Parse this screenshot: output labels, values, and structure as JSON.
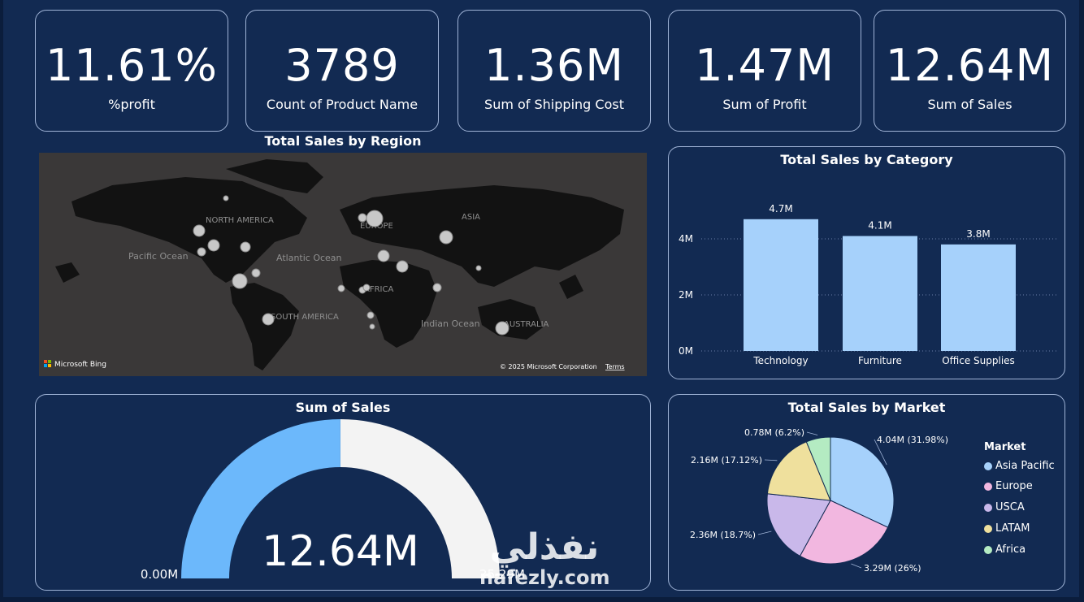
{
  "kpis": [
    {
      "value": "11.61%",
      "label": "%profit"
    },
    {
      "value": "3789",
      "label": "Count of Product Name"
    },
    {
      "value": "1.36M",
      "label": "Sum of Shipping  Cost"
    },
    {
      "value": "1.47M",
      "label": "Sum of Profit"
    },
    {
      "value": "12.64M",
      "label": "Sum of Sales"
    }
  ],
  "map": {
    "title": "Total Sales by Region",
    "labels": {
      "north_america": "NORTH AMERICA",
      "europe": "EUROPE",
      "asia": "ASIA",
      "africa": "AFRICA",
      "south_america": "SOUTH AMERICA",
      "australia": "AUSTRALIA",
      "pacific": "Pacific Ocean",
      "atlantic": "Atlantic Ocean",
      "indian": "Indian Ocean"
    },
    "logo": "Microsoft Bing",
    "copyright": "© 2025 Microsoft Corporation",
    "terms": "Terms"
  },
  "category_chart": {
    "title": "Total Sales by Category",
    "chart_data": {
      "type": "bar",
      "categories": [
        "Technology",
        "Furniture",
        "Office Supplies"
      ],
      "values": [
        4.7,
        4.1,
        3.8
      ],
      "data_labels": [
        "4.7M",
        "4.1M",
        "3.8M"
      ],
      "y_ticks": [
        "0M",
        "2M",
        "4M"
      ],
      "ylim": [
        0,
        5.1
      ],
      "bar_color": "#a6d1fb",
      "grid": true
    }
  },
  "gauge": {
    "title": "Sum of Sales",
    "value_label": "12.64M",
    "min_label": "0.00M",
    "max_label": "25.29M",
    "chart_data": {
      "type": "gauge",
      "value": 12.64,
      "min": 0,
      "max": 25.29
    },
    "fill_color": "#6cb8fb",
    "track_color": "#f3f3f3"
  },
  "market_chart": {
    "title": "Total Sales by Market",
    "legend_title": "Market",
    "chart_data": {
      "type": "pie",
      "categories": [
        "Asia Pacific",
        "Europe",
        "USCA",
        "LATAM",
        "Africa"
      ],
      "values": [
        31.98,
        26,
        18.7,
        17.12,
        6.2
      ],
      "labels": [
        "4.04M (31.98%)",
        "3.29M (26%)",
        "2.36M (18.7%)",
        "2.16M (17.12%)",
        "0.78M (6.2%)"
      ],
      "colors": [
        "#a6d1fb",
        "#f2b7e0",
        "#c9b8ea",
        "#efe09d",
        "#b4ebc2"
      ]
    }
  },
  "watermark": {
    "arabic": "نفذلي",
    "latin": "nafezly.com"
  }
}
